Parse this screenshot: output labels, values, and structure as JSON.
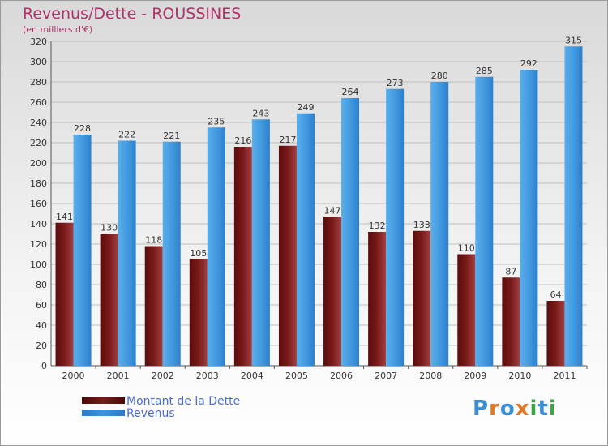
{
  "header": {
    "title": "Revenus/Dette - ROUSSINES",
    "subtitle": "(en milliers d'€)"
  },
  "brand": {
    "logo_text": "Proxiti",
    "letter_colors": [
      "#3a8fd6",
      "#e0762a",
      "#3a8fd6",
      "#e0762a",
      "#3aa548",
      "#3a8fd6",
      "#3aa548"
    ]
  },
  "colors": {
    "dette": "#7a1a1a",
    "revenus": "#3f96de",
    "grid": "#bfbfbf",
    "axis_text": "#333333"
  },
  "chart_data": {
    "type": "bar",
    "title": "Revenus/Dette - ROUSSINES",
    "subtitle": "(en milliers d'€)",
    "categories": [
      "2000",
      "2001",
      "2002",
      "2003",
      "2004",
      "2005",
      "2006",
      "2007",
      "2008",
      "2009",
      "2010",
      "2011"
    ],
    "series": [
      {
        "name": "Montant de la Dette",
        "values": [
          141,
          130,
          118,
          105,
          216,
          217,
          147,
          132,
          133,
          110,
          87,
          64
        ]
      },
      {
        "name": "Revenus",
        "values": [
          228,
          222,
          221,
          235,
          243,
          249,
          264,
          273,
          280,
          285,
          292,
          315
        ]
      }
    ],
    "ylim": [
      0,
      320
    ],
    "yticks": [
      0,
      20,
      40,
      60,
      80,
      100,
      120,
      140,
      160,
      180,
      200,
      220,
      240,
      260,
      280,
      300,
      320
    ],
    "grid": true,
    "legend_position": "bottom-left"
  }
}
